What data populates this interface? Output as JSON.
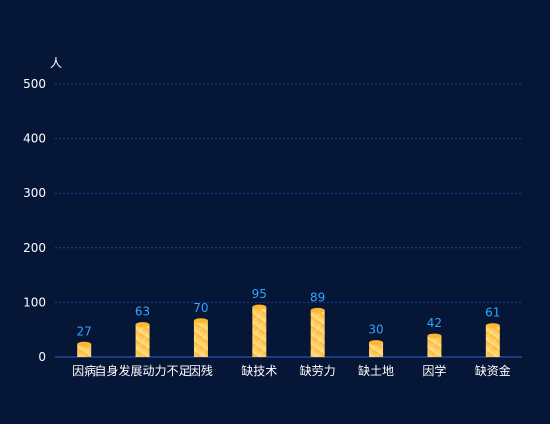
{
  "chart_data": {
    "type": "bar",
    "title": "",
    "ylabel": "人",
    "xlabel": "",
    "categories": [
      "因病",
      "自身发展动力不足",
      "因残",
      "缺技术",
      "缺劳力",
      "缺土地",
      "因学",
      "缺资金"
    ],
    "values": [
      27,
      63,
      70,
      95,
      89,
      30,
      42,
      61
    ],
    "x_tick_labels": [
      "因病",
      "自身发展动力不足",
      "因残",
      "缺技术",
      "缺劳力",
      "缺土地",
      "因学",
      "缺资金"
    ],
    "y_ticks": [
      "0",
      "100",
      "200",
      "300",
      "400",
      "500"
    ],
    "ylim": [
      0,
      500
    ],
    "grid": true,
    "legend": "none",
    "colors": {
      "background": "#061636",
      "gridline": "#1f3f8f",
      "axis_line": "#2a62c9",
      "tick_text": "#ffffff",
      "value_label": "#2ea6ff",
      "bar_top": "#ffb733",
      "bar_bottom": "#ffe08a"
    }
  }
}
